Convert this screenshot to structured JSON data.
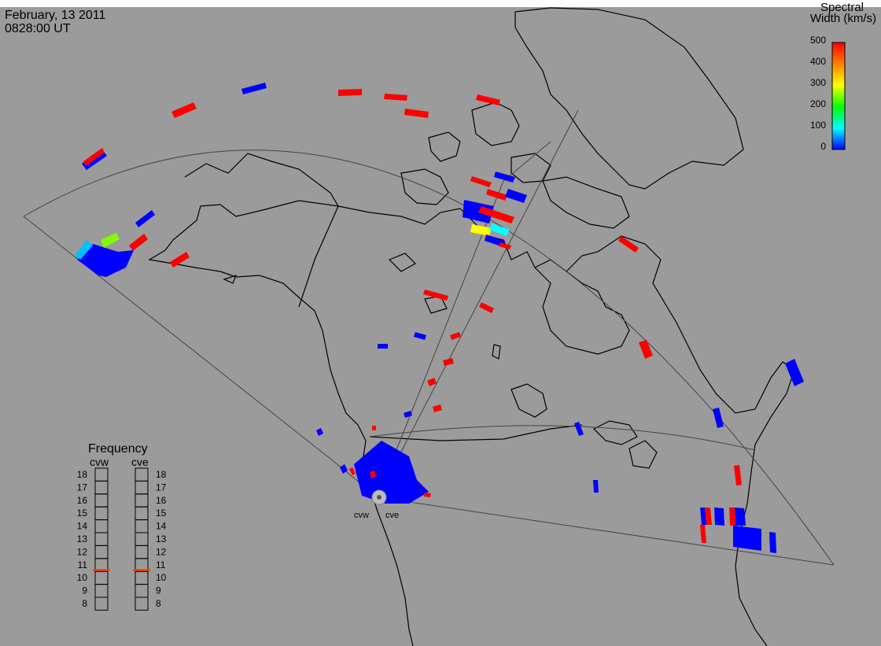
{
  "header": {
    "date": "February, 13 2011",
    "time": "0828:00 UT"
  },
  "colorbar": {
    "title_line1": "Spectral",
    "title_line2": "Width (km/s)",
    "ticks": [
      "500",
      "400",
      "300",
      "200",
      "100",
      "0"
    ],
    "min": 0,
    "max": 500,
    "colors": [
      "#0000ff",
      "#00ffff",
      "#00ff00",
      "#ffff00",
      "#ff8000",
      "#ff0000"
    ]
  },
  "radars": {
    "west_label": "cvw",
    "east_label": "cve"
  },
  "frequency_panel": {
    "title": "Frequency",
    "col_left": "cvw",
    "col_right": "cve",
    "levels": [
      "18",
      "17",
      "16",
      "15",
      "14",
      "13",
      "12",
      "11",
      "10",
      "9",
      "8"
    ],
    "cvw_frequency_mhz": 10.6,
    "cve_frequency_mhz": 10.6,
    "marker_color": "#ff4000"
  },
  "colors": {
    "background": "#9b9b9b",
    "coast": "#000000",
    "fov": "#444444",
    "high_width": "#ff0000",
    "low_width": "#0000ff"
  }
}
